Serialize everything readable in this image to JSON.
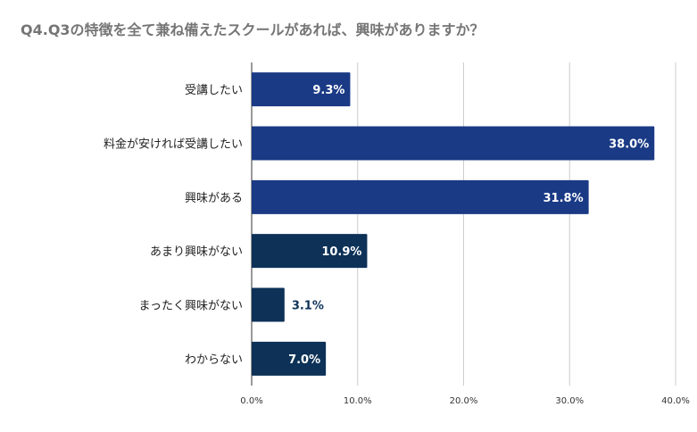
{
  "chart_data": {
    "type": "bar",
    "orientation": "horizontal",
    "title": "Q4.Q3の特徴を全て兼ね備えたスクールがあれば、興味がありますか？",
    "xlabel": "",
    "ylabel": "",
    "categories": [
      "受講したい",
      "料金が安ければ受講したい",
      "興味がある",
      "あまり興味がない",
      "まったく興味がない",
      "わからない"
    ],
    "values": [
      9.3,
      38.0,
      31.8,
      10.9,
      3.1,
      7.0
    ],
    "value_labels": [
      "9.3%",
      "38.0%",
      "31.8%",
      "10.9%",
      "3.1%",
      "7.0%"
    ],
    "bar_colors": [
      "#1a3a85",
      "#1a3a85",
      "#1a3a85",
      "#0d3157",
      "#0d3157",
      "#0d3157"
    ],
    "xlim": [
      0,
      40
    ],
    "x_ticks": [
      "0.0%",
      "10.0%",
      "20.0%",
      "30.0%",
      "40.0%"
    ],
    "grid": true,
    "legend": "none"
  }
}
